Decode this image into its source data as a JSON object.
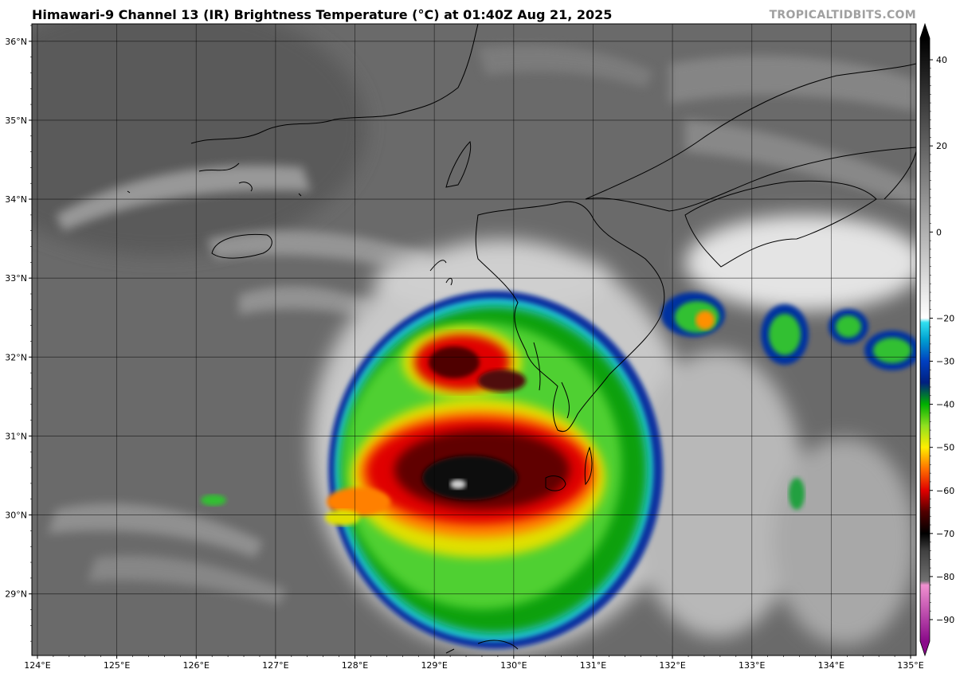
{
  "title": "Himawari-9 Channel 13 (IR) Brightness Temperature (°C) at 01:40Z Aug 21, 2025",
  "credit": "TROPICALTIDBITS.COM",
  "map": {
    "lon_range": [
      123.93,
      135.07
    ],
    "lat_range": [
      28.22,
      36.22
    ],
    "lon_ticks": [
      {
        "v": 124,
        "label": "124°E"
      },
      {
        "v": 125,
        "label": "125°E"
      },
      {
        "v": 126,
        "label": "126°E"
      },
      {
        "v": 127,
        "label": "127°E"
      },
      {
        "v": 128,
        "label": "128°E"
      },
      {
        "v": 129,
        "label": "129°E"
      },
      {
        "v": 130,
        "label": "130°E"
      },
      {
        "v": 131,
        "label": "131°E"
      },
      {
        "v": 132,
        "label": "132°E"
      },
      {
        "v": 133,
        "label": "133°E"
      },
      {
        "v": 134,
        "label": "134°E"
      },
      {
        "v": 135,
        "label": "135°E"
      }
    ],
    "lat_ticks": [
      {
        "v": 29,
        "label": "29°N"
      },
      {
        "v": 30,
        "label": "30°N"
      },
      {
        "v": 31,
        "label": "31°N"
      },
      {
        "v": 32,
        "label": "32°N"
      },
      {
        "v": 33,
        "label": "33°N"
      },
      {
        "v": 34,
        "label": "34°N"
      },
      {
        "v": 35,
        "label": "35°N"
      },
      {
        "v": 36,
        "label": "36°N"
      }
    ],
    "grid": true
  },
  "colorbar": {
    "range": [
      -95,
      45
    ],
    "ticks": [
      {
        "v": 40,
        "label": "40"
      },
      {
        "v": 20,
        "label": "20"
      },
      {
        "v": 0,
        "label": "0"
      },
      {
        "v": -20,
        "label": "−20"
      },
      {
        "v": -30,
        "label": "−30"
      },
      {
        "v": -40,
        "label": "−40"
      },
      {
        "v": -50,
        "label": "−50"
      },
      {
        "v": -60,
        "label": "−60"
      },
      {
        "v": -70,
        "label": "−70"
      },
      {
        "v": -80,
        "label": "−80"
      },
      {
        "v": -90,
        "label": "−90"
      }
    ],
    "stops": [
      {
        "v": -95,
        "color": "#8a0a8a"
      },
      {
        "v": -82,
        "color": "#f090d0"
      },
      {
        "v": -81,
        "color": "#707070"
      },
      {
        "v": -74,
        "color": "#404040"
      },
      {
        "v": -70,
        "color": "#000000"
      },
      {
        "v": -65,
        "color": "#500000"
      },
      {
        "v": -60,
        "color": "#e00000"
      },
      {
        "v": -55,
        "color": "#ff7000"
      },
      {
        "v": -50,
        "color": "#ffee00"
      },
      {
        "v": -45,
        "color": "#90e020"
      },
      {
        "v": -40,
        "color": "#00b000"
      },
      {
        "v": -35,
        "color": "#002080"
      },
      {
        "v": -30,
        "color": "#0040c0"
      },
      {
        "v": -25,
        "color": "#00a0d0"
      },
      {
        "v": -21,
        "color": "#30e0f0"
      },
      {
        "v": -20,
        "color": "#ffffff"
      },
      {
        "v": 45,
        "color": "#000000"
      }
    ]
  },
  "colors": {
    "background_gray": "#6a6a6a",
    "coast": "#000000"
  }
}
